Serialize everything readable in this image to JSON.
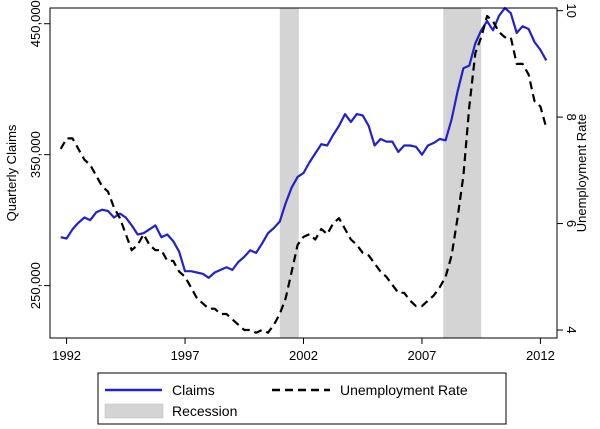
{
  "chart_data": {
    "type": "line",
    "title": "",
    "xlabel": "",
    "ylabel_left": "Quarterly Claims",
    "ylabel_right": "Unemployment Rate",
    "xlim": [
      1991.3,
      2012.7
    ],
    "ylim_left": [
      210000,
      462000
    ],
    "ylim_right": [
      3.85,
      10.05
    ],
    "x_ticks": [
      1992,
      1997,
      2002,
      2007,
      2012
    ],
    "x_tick_labels": [
      "1992",
      "1997",
      "2002",
      "2007",
      "2012"
    ],
    "y_left_ticks": [
      250000,
      350000,
      450000
    ],
    "y_left_tick_labels": [
      "250,000",
      "350,000",
      "450,000"
    ],
    "y_right_ticks": [
      4,
      6,
      8,
      10
    ],
    "y_right_tick_labels": [
      "4",
      "6",
      "8",
      "10"
    ],
    "grid": false,
    "legend_position": "bottom",
    "recessions": [
      {
        "start": 2001.0,
        "end": 2001.8
      },
      {
        "start": 2007.9,
        "end": 2009.5
      }
    ],
    "series": [
      {
        "name": "Claims",
        "axis": "left",
        "color": "#2222cc",
        "style": "solid",
        "x": [
          1991.75,
          1992.0,
          1992.25,
          1992.5,
          1992.75,
          1993.0,
          1993.25,
          1993.5,
          1993.75,
          1994.0,
          1994.25,
          1994.5,
          1994.75,
          1995.0,
          1995.25,
          1995.5,
          1995.75,
          1996.0,
          1996.25,
          1996.5,
          1996.75,
          1997.0,
          1997.25,
          1997.5,
          1997.75,
          1998.0,
          1998.25,
          1998.5,
          1998.75,
          1999.0,
          1999.25,
          1999.5,
          1999.75,
          2000.0,
          2000.25,
          2000.5,
          2000.75,
          2001.0,
          2001.25,
          2001.5,
          2001.75,
          2002.0,
          2002.25,
          2002.5,
          2002.75,
          2003.0,
          2003.25,
          2003.5,
          2003.75,
          2004.0,
          2004.25,
          2004.5,
          2004.75,
          2005.0,
          2005.25,
          2005.5,
          2005.75,
          2006.0,
          2006.25,
          2006.5,
          2006.75,
          2007.0,
          2007.25,
          2007.5,
          2007.75,
          2008.0,
          2008.25,
          2008.5,
          2008.75,
          2009.0,
          2009.25,
          2009.5,
          2009.75,
          2010.0,
          2010.25,
          2010.5,
          2010.75,
          2011.0,
          2011.25,
          2011.5,
          2011.75,
          2012.0,
          2012.25
        ],
        "values": [
          287000,
          286000,
          293000,
          298000,
          302000,
          300000,
          306000,
          308000,
          307000,
          302000,
          305000,
          302000,
          296000,
          289000,
          290000,
          293000,
          296000,
          287000,
          289000,
          284000,
          276000,
          261000,
          261000,
          260000,
          259000,
          256000,
          260000,
          262000,
          264000,
          262000,
          268000,
          272000,
          277000,
          275000,
          282000,
          290000,
          294000,
          299000,
          313000,
          325000,
          333000,
          336000,
          344000,
          351000,
          358000,
          357000,
          365000,
          372000,
          381000,
          375000,
          381000,
          380000,
          372000,
          357000,
          362000,
          360000,
          360000,
          352000,
          357000,
          357000,
          356000,
          350000,
          357000,
          359000,
          362000,
          361000,
          377000,
          398000,
          416000,
          418000,
          435000,
          445000,
          452000,
          445000,
          456000,
          462000,
          458000,
          443000,
          448000,
          446000,
          436000,
          430000,
          422000
        ]
      },
      {
        "name": "Unemployment Rate",
        "axis": "right",
        "color": "#000000",
        "style": "dashed",
        "x": [
          1991.75,
          1992.0,
          1992.25,
          1992.5,
          1992.75,
          1993.0,
          1993.25,
          1993.5,
          1993.75,
          1994.0,
          1994.25,
          1994.5,
          1994.75,
          1995.0,
          1995.25,
          1995.5,
          1995.75,
          1996.0,
          1996.25,
          1996.5,
          1996.75,
          1997.0,
          1997.25,
          1997.5,
          1997.75,
          1998.0,
          1998.25,
          1998.5,
          1998.75,
          1999.0,
          1999.25,
          1999.5,
          1999.75,
          2000.0,
          2000.25,
          2000.5,
          2000.75,
          2001.0,
          2001.25,
          2001.5,
          2001.75,
          2002.0,
          2002.25,
          2002.5,
          2002.75,
          2003.0,
          2003.25,
          2003.5,
          2003.75,
          2004.0,
          2004.25,
          2004.5,
          2004.75,
          2005.0,
          2005.25,
          2005.5,
          2005.75,
          2006.0,
          2006.25,
          2006.5,
          2006.75,
          2007.0,
          2007.25,
          2007.5,
          2007.75,
          2008.0,
          2008.25,
          2008.5,
          2008.75,
          2009.0,
          2009.25,
          2009.5,
          2009.75,
          2010.0,
          2010.25,
          2010.5,
          2010.75,
          2011.0,
          2011.25,
          2011.5,
          2011.75,
          2012.0,
          2012.25
        ],
        "values": [
          7.4,
          7.6,
          7.6,
          7.4,
          7.2,
          7.1,
          6.9,
          6.7,
          6.6,
          6.3,
          6.1,
          5.8,
          5.5,
          5.6,
          5.8,
          5.6,
          5.5,
          5.5,
          5.3,
          5.3,
          5.1,
          5.0,
          4.8,
          4.6,
          4.5,
          4.4,
          4.4,
          4.3,
          4.3,
          4.2,
          4.1,
          4.0,
          4.0,
          3.95,
          4.0,
          3.95,
          4.1,
          4.3,
          4.6,
          5.1,
          5.6,
          5.75,
          5.8,
          5.7,
          5.9,
          5.8,
          6.0,
          6.1,
          5.9,
          5.7,
          5.6,
          5.45,
          5.4,
          5.25,
          5.1,
          5.0,
          4.85,
          4.7,
          4.7,
          4.55,
          4.45,
          4.45,
          4.55,
          4.65,
          4.8,
          5.0,
          5.4,
          6.1,
          6.9,
          8.2,
          9.2,
          9.5,
          9.9,
          9.8,
          9.6,
          9.5,
          9.5,
          9.0,
          9.0,
          8.8,
          8.3,
          8.2,
          7.8
        ]
      }
    ],
    "legend": {
      "claims_label": "Claims",
      "unemployment_label": "Unemployment Rate",
      "recession_label": "Recession"
    }
  }
}
